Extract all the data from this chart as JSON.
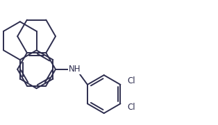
{
  "bg_color": "#ffffff",
  "line_color": "#2d2d4e",
  "line_width": 1.4,
  "font_size": 8.5,
  "nh_label": "NH",
  "cl1_label": "Cl",
  "cl2_label": "Cl"
}
